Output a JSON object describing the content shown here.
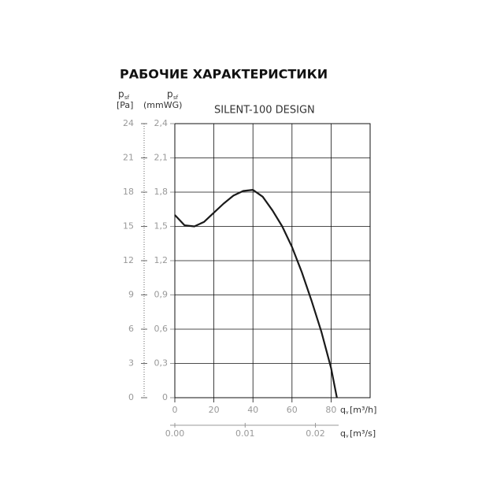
{
  "chart_data": {
    "type": "line",
    "title": "РАБОЧИЕ ХАРАКТЕРИСТИКИ",
    "subtitle": "SILENT-100 DESIGN",
    "y_label": "p",
    "y_label_sub": "sf",
    "y_unit": "[Pa]",
    "y2_label": "p",
    "y2_label_sub": "sf",
    "y2_unit": "(mmWG)",
    "x_label": "q",
    "x_label_sub": "v",
    "x_unit": "[m³/h]",
    "x2_label": "q",
    "x2_label_sub": "v",
    "x2_unit": "[m³/s]",
    "x": [
      0,
      5,
      10,
      15,
      20,
      25,
      30,
      35,
      40,
      45,
      50,
      55,
      60,
      65,
      70,
      75,
      80,
      83
    ],
    "series": [
      {
        "name": "SILENT-100 DESIGN",
        "color": "#1a1a1a",
        "values": [
          16.0,
          15.1,
          15.0,
          15.4,
          16.2,
          17.0,
          17.7,
          18.1,
          18.2,
          17.6,
          16.4,
          15.0,
          13.2,
          11.0,
          8.5,
          5.8,
          2.6,
          0
        ]
      }
    ],
    "xlim": [
      0,
      100
    ],
    "xticks": [
      0,
      20,
      40,
      60,
      80
    ],
    "x2lim": [
      0,
      0.02778
    ],
    "x2ticks": [
      {
        "value": 0,
        "label": "0.00"
      },
      {
        "value": 0.01,
        "label": "0.01"
      },
      {
        "value": 0.02,
        "label": "0.02"
      }
    ],
    "ylim": [
      0,
      24
    ],
    "yticks": [
      0,
      3,
      6,
      9,
      12,
      15,
      18,
      21,
      24
    ],
    "y2lim": [
      0,
      2.4
    ],
    "y2ticks": [
      {
        "value": 0,
        "label": "0"
      },
      {
        "value": 0.3,
        "label": "0,3"
      },
      {
        "value": 0.6,
        "label": "0,6"
      },
      {
        "value": 0.9,
        "label": "0,9"
      },
      {
        "value": 1.2,
        "label": "1,2"
      },
      {
        "value": 1.5,
        "label": "1,5"
      },
      {
        "value": 1.8,
        "label": "1,8"
      },
      {
        "value": 2.1,
        "label": "2,1"
      },
      {
        "value": 2.4,
        "label": "2,4"
      }
    ],
    "grid": true
  }
}
